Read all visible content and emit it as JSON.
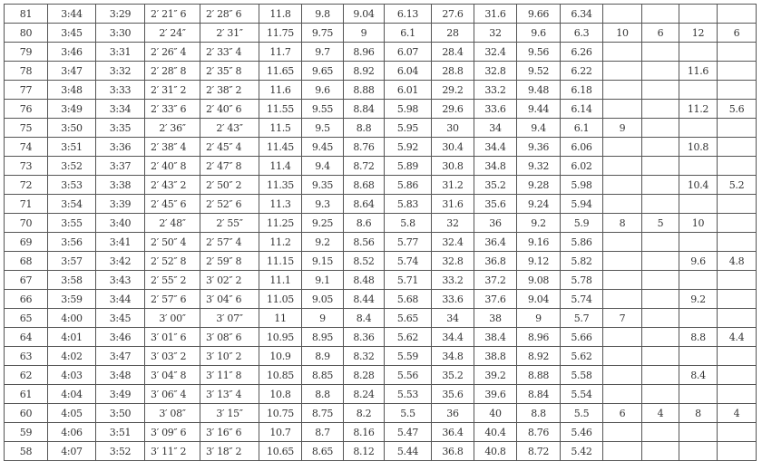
{
  "table": {
    "rows": [
      [
        "81",
        "3:44",
        "3:29",
        "2′ 21″ 6",
        "2′ 28″ 6",
        "11.8",
        "9.8",
        "9.04",
        "6.13",
        "27.6",
        "31.6",
        "9.66",
        "6.34",
        "",
        "",
        "",
        ""
      ],
      [
        "80",
        "3:45",
        "3:30",
        "2′ 24″",
        "2′ 31″",
        "11.75",
        "9.75",
        "9",
        "6.1",
        "28",
        "32",
        "9.6",
        "6.3",
        "10",
        "6",
        "12",
        "6"
      ],
      [
        "79",
        "3:46",
        "3:31",
        "2′ 26″ 4",
        "2′ 33″ 4",
        "11.7",
        "9.7",
        "8.96",
        "6.07",
        "28.4",
        "32.4",
        "9.56",
        "6.26",
        "",
        "",
        "",
        ""
      ],
      [
        "78",
        "3:47",
        "3:32",
        "2′ 28″ 8",
        "2′ 35″ 8",
        "11.65",
        "9.65",
        "8.92",
        "6.04",
        "28.8",
        "32.8",
        "9.52",
        "6.22",
        "",
        "",
        "11.6",
        ""
      ],
      [
        "77",
        "3:48",
        "3:33",
        "2′ 31″ 2",
        "2′ 38″ 2",
        "11.6",
        "9.6",
        "8.88",
        "6.01",
        "29.2",
        "33.2",
        "9.48",
        "6.18",
        "",
        "",
        "",
        ""
      ],
      [
        "76",
        "3:49",
        "3:34",
        "2′ 33″ 6",
        "2′ 40″ 6",
        "11.55",
        "9.55",
        "8.84",
        "5.98",
        "29.6",
        "33.6",
        "9.44",
        "6.14",
        "",
        "",
        "11.2",
        "5.6"
      ],
      [
        "75",
        "3:50",
        "3:35",
        "2′ 36″",
        "2′ 43″",
        "11.5",
        "9.5",
        "8.8",
        "5.95",
        "30",
        "34",
        "9.4",
        "6.1",
        "9",
        "",
        "",
        ""
      ],
      [
        "74",
        "3:51",
        "3:36",
        "2′ 38″ 4",
        "2′ 45″ 4",
        "11.45",
        "9.45",
        "8.76",
        "5.92",
        "30.4",
        "34.4",
        "9.36",
        "6.06",
        "",
        "",
        "10.8",
        ""
      ],
      [
        "73",
        "3:52",
        "3:37",
        "2′ 40″ 8",
        "2′ 47″ 8",
        "11.4",
        "9.4",
        "8.72",
        "5.89",
        "30.8",
        "34.8",
        "9.32",
        "6.02",
        "",
        "",
        "",
        ""
      ],
      [
        "72",
        "3:53",
        "3:38",
        "2′ 43″ 2",
        "2′ 50″ 2",
        "11.35",
        "9.35",
        "8.68",
        "5.86",
        "31.2",
        "35.2",
        "9.28",
        "5.98",
        "",
        "",
        "10.4",
        "5.2"
      ],
      [
        "71",
        "3:54",
        "3:39",
        "2′ 45″ 6",
        "2′ 52″ 6",
        "11.3",
        "9.3",
        "8.64",
        "5.83",
        "31.6",
        "35.6",
        "9.24",
        "5.94",
        "",
        "",
        "",
        ""
      ],
      [
        "70",
        "3:55",
        "3:40",
        "2′ 48″",
        "2′ 55″",
        "11.25",
        "9.25",
        "8.6",
        "5.8",
        "32",
        "36",
        "9.2",
        "5.9",
        "8",
        "5",
        "10",
        ""
      ],
      [
        "69",
        "3:56",
        "3:41",
        "2′ 50″ 4",
        "2′ 57″ 4",
        "11.2",
        "9.2",
        "8.56",
        "5.77",
        "32.4",
        "36.4",
        "9.16",
        "5.86",
        "",
        "",
        "",
        ""
      ],
      [
        "68",
        "3:57",
        "3:42",
        "2′ 52″ 8",
        "2′ 59″ 8",
        "11.15",
        "9.15",
        "8.52",
        "5.74",
        "32.8",
        "36.8",
        "9.12",
        "5.82",
        "",
        "",
        "9.6",
        "4.8"
      ],
      [
        "67",
        "3:58",
        "3:43",
        "2′ 55″ 2",
        "3′ 02″ 2",
        "11.1",
        "9.1",
        "8.48",
        "5.71",
        "33.2",
        "37.2",
        "9.08",
        "5.78",
        "",
        "",
        "",
        ""
      ],
      [
        "66",
        "3:59",
        "3:44",
        "2′ 57″ 6",
        "3′ 04″ 6",
        "11.05",
        "9.05",
        "8.44",
        "5.68",
        "33.6",
        "37.6",
        "9.04",
        "5.74",
        "",
        "",
        "9.2",
        ""
      ],
      [
        "65",
        "4:00",
        "3:45",
        "3′ 00″",
        "3′ 07″",
        "11",
        "9",
        "8.4",
        "5.65",
        "34",
        "38",
        "9",
        "5.7",
        "7",
        "",
        "",
        ""
      ],
      [
        "64",
        "4:01",
        "3:46",
        "3′ 01″ 6",
        "3′ 08″ 6",
        "10.95",
        "8.95",
        "8.36",
        "5.62",
        "34.4",
        "38.4",
        "8.96",
        "5.66",
        "",
        "",
        "8.8",
        "4.4"
      ],
      [
        "63",
        "4:02",
        "3:47",
        "3′ 03″ 2",
        "3′ 10″ 2",
        "10.9",
        "8.9",
        "8.32",
        "5.59",
        "34.8",
        "38.8",
        "8.92",
        "5.62",
        "",
        "",
        "",
        ""
      ],
      [
        "62",
        "4:03",
        "3:48",
        "3′ 04″ 8",
        "3′ 11″ 8",
        "10.85",
        "8.85",
        "8.28",
        "5.56",
        "35.2",
        "39.2",
        "8.88",
        "5.58",
        "",
        "",
        "8.4",
        ""
      ],
      [
        "61",
        "4:04",
        "3:49",
        "3′ 06″ 4",
        "3′ 13″ 4",
        "10.8",
        "8.8",
        "8.24",
        "5.53",
        "35.6",
        "39.6",
        "8.84",
        "5.54",
        "",
        "",
        "",
        ""
      ],
      [
        "60",
        "4:05",
        "3:50",
        "3′ 08″",
        "3′ 15″",
        "10.75",
        "8.75",
        "8.2",
        "5.5",
        "36",
        "40",
        "8.8",
        "5.5",
        "6",
        "4",
        "8",
        "4"
      ],
      [
        "59",
        "4:06",
        "3:51",
        "3′ 09″ 6",
        "3′ 16″ 6",
        "10.7",
        "8.7",
        "8.16",
        "5.47",
        "36.4",
        "40.4",
        "8.76",
        "5.46",
        "",
        "",
        "",
        ""
      ],
      [
        "58",
        "4:07",
        "3:52",
        "3′ 11″ 2",
        "3′ 18″ 2",
        "10.65",
        "8.65",
        "8.12",
        "5.44",
        "36.8",
        "40.8",
        "8.72",
        "5.42",
        "",
        "",
        "",
        ""
      ]
    ]
  }
}
